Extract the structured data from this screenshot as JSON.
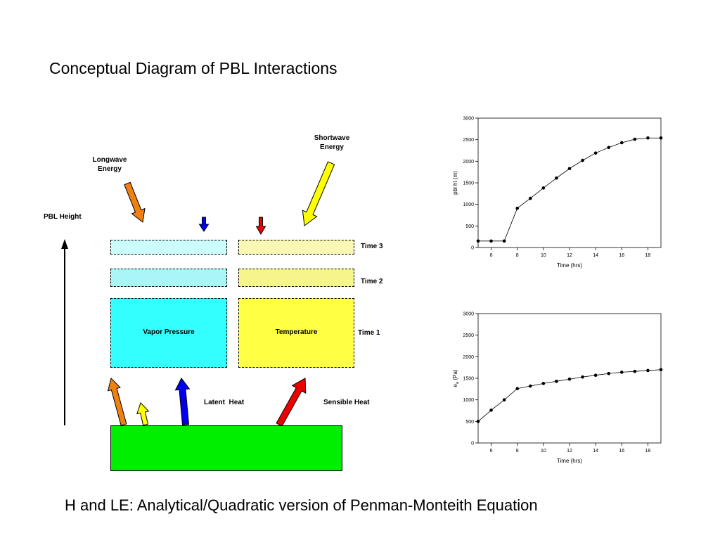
{
  "title": "Conceptual Diagram of PBL Interactions",
  "footer": "H and LE: Analytical/Quadratic version of Penman-Monteith Equation",
  "diagram": {
    "longwave_label": "Longwave\nEnergy",
    "shortwave_label": "Shortwave\nEnergy",
    "pbl_height_label": "PBL Height",
    "vapor_pressure_label": "Vapor Pressure",
    "temperature_label": "Temperature",
    "time1_label": "Time 1",
    "time2_label": "Time 2",
    "time3_label": "Time 3",
    "latent_heat_label": "Latent  Heat",
    "sensible_heat_label": "Sensible Heat",
    "colors": {
      "ground": "#00ee00",
      "vapor": "#33ffff",
      "vapor_light": "#aaf6f6",
      "vapor_lighter": "#ccfcfc",
      "temp": "#ffff44",
      "temp_light": "#f5f58c",
      "temp_lighter": "#f8f8b4",
      "orange": "#f08010",
      "yellow": "#ffff00",
      "blue": "#0000ee",
      "red": "#ee0000"
    }
  },
  "chart_data": [
    {
      "type": "line",
      "title": "",
      "xlabel": "Time (hrs)",
      "ylabel": "pbl ht (m)",
      "xlim": [
        5,
        19
      ],
      "ylim": [
        0,
        3000
      ],
      "xticks": [
        6,
        8,
        10,
        12,
        14,
        16,
        18
      ],
      "yticks": [
        0,
        500,
        1000,
        1500,
        2000,
        2500,
        3000
      ],
      "x": [
        5,
        6,
        7,
        8,
        9,
        10,
        11,
        12,
        13,
        14,
        15,
        16,
        17,
        18,
        19
      ],
      "y": [
        150,
        150,
        150,
        910,
        1140,
        1380,
        1610,
        1830,
        2020,
        2190,
        2320,
        2430,
        2510,
        2540,
        2540
      ]
    },
    {
      "type": "line",
      "title": "",
      "xlabel": "Time (hrs)",
      "ylabel": "e",
      "ylabel_sub": "a",
      "ylabel_unit": " (Pa)",
      "xlim": [
        5,
        19
      ],
      "ylim": [
        0,
        3000
      ],
      "xticks": [
        6,
        8,
        10,
        12,
        14,
        16,
        18
      ],
      "yticks": [
        0,
        500,
        1000,
        1500,
        2000,
        2500,
        3000
      ],
      "x": [
        5,
        6,
        7,
        8,
        9,
        10,
        11,
        12,
        13,
        14,
        15,
        16,
        17,
        18,
        19
      ],
      "y": [
        500,
        760,
        1000,
        1260,
        1320,
        1380,
        1430,
        1480,
        1530,
        1570,
        1610,
        1640,
        1660,
        1680,
        1700
      ]
    }
  ]
}
